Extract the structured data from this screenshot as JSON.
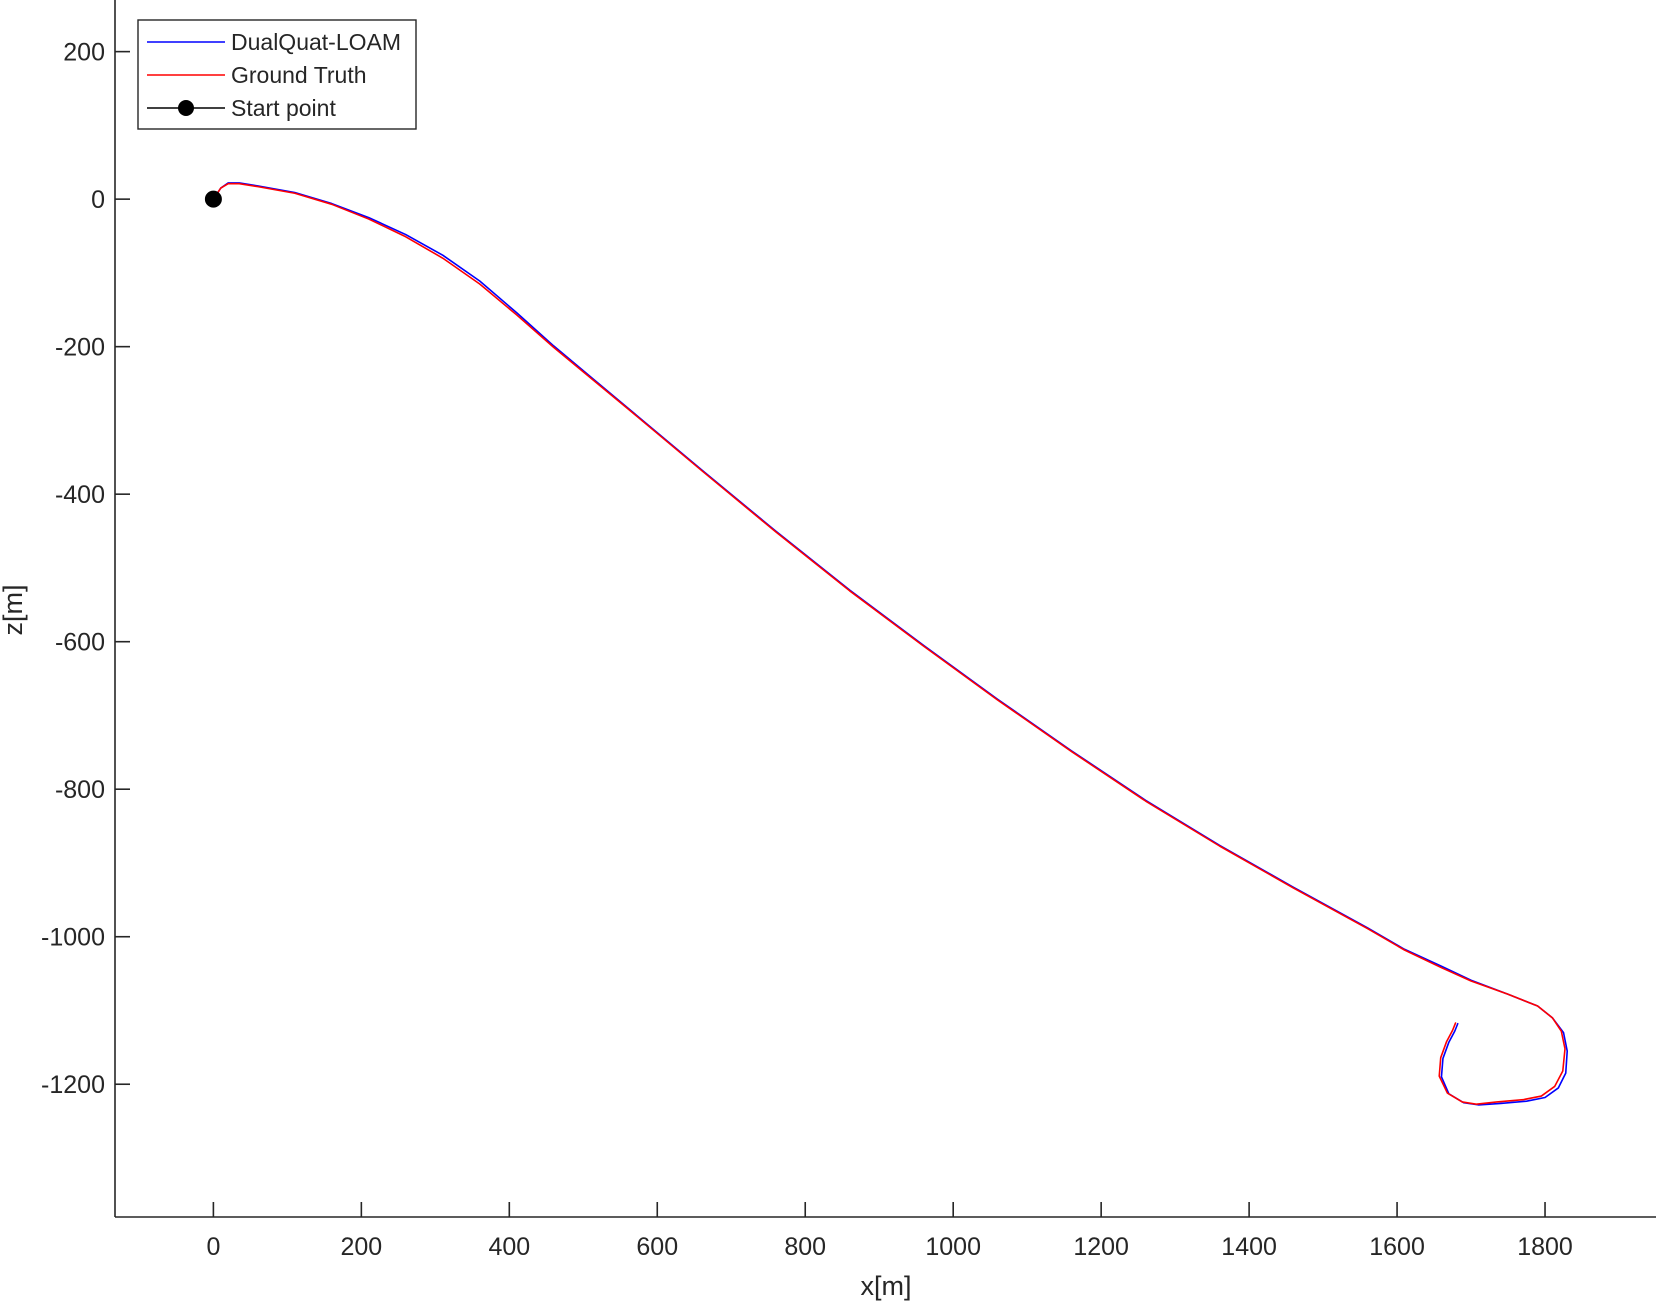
{
  "chart_data": {
    "type": "line",
    "title": "",
    "xlabel": "x[m]",
    "ylabel": "z[m]",
    "xlim": [
      -133,
      1950
    ],
    "ylim": [
      -1380,
      270
    ],
    "xticks": [
      0,
      200,
      400,
      600,
      800,
      1000,
      1200,
      1400,
      1600,
      1800
    ],
    "xtick_labels": [
      "0",
      "200",
      "400",
      "600",
      "800",
      "1000",
      "1200",
      "1400",
      "1600",
      "1800"
    ],
    "yticks": [
      200,
      0,
      -200,
      -400,
      -600,
      -800,
      -1000,
      -1200
    ],
    "ytick_labels": [
      "200",
      "0",
      "-200",
      "-400",
      "-600",
      "-800",
      "-1000",
      "-1200"
    ],
    "grid": false,
    "legend_position": "top-left",
    "series": [
      {
        "name": "DualQuat-LOAM",
        "color": "#0000ff",
        "x": [
          0,
          10,
          20,
          35,
          60,
          110,
          160,
          210,
          260,
          310,
          360,
          410,
          460,
          560,
          660,
          760,
          860,
          960,
          1060,
          1160,
          1260,
          1360,
          1460,
          1560,
          1610,
          1660,
          1700,
          1750,
          1790,
          1810,
          1825,
          1830,
          1828,
          1818,
          1800,
          1775,
          1740,
          1710,
          1690,
          1670,
          1660,
          1662,
          1670,
          1678,
          1682
        ],
        "y": [
          0,
          15,
          22,
          22,
          18,
          9,
          -6,
          -25,
          -48,
          -76,
          -111,
          -154,
          -199,
          -283,
          -367,
          -450,
          -530,
          -605,
          -678,
          -748,
          -815,
          -876,
          -933,
          -988,
          -1017,
          -1040,
          -1059,
          -1078,
          -1094,
          -1110,
          -1130,
          -1155,
          -1185,
          -1205,
          -1218,
          -1223,
          -1226,
          -1228,
          -1225,
          -1213,
          -1190,
          -1165,
          -1143,
          -1128,
          -1118
        ]
      },
      {
        "name": "Ground Truth",
        "color": "#ff0000",
        "x": [
          0,
          10,
          20,
          35,
          60,
          110,
          160,
          210,
          260,
          310,
          360,
          410,
          460,
          560,
          660,
          760,
          860,
          960,
          1060,
          1160,
          1260,
          1360,
          1460,
          1560,
          1610,
          1660,
          1700,
          1750,
          1790,
          1810,
          1822,
          1827,
          1824,
          1813,
          1795,
          1770,
          1735,
          1707,
          1688,
          1668,
          1657,
          1659,
          1667,
          1675,
          1679
        ],
        "y": [
          0,
          15,
          21,
          21,
          17,
          8,
          -7,
          -27,
          -51,
          -80,
          -115,
          -157,
          -201,
          -284,
          -368,
          -451,
          -531,
          -606,
          -679,
          -749,
          -816,
          -877,
          -934,
          -989,
          -1018,
          -1042,
          -1060,
          -1078,
          -1094,
          -1110,
          -1128,
          -1152,
          -1182,
          -1203,
          -1216,
          -1221,
          -1224,
          -1227,
          -1224,
          -1212,
          -1189,
          -1164,
          -1142,
          -1127,
          -1117
        ]
      }
    ],
    "markers": [
      {
        "name": "Start point",
        "color": "#000000",
        "x": 0,
        "y": 0
      }
    ]
  }
}
